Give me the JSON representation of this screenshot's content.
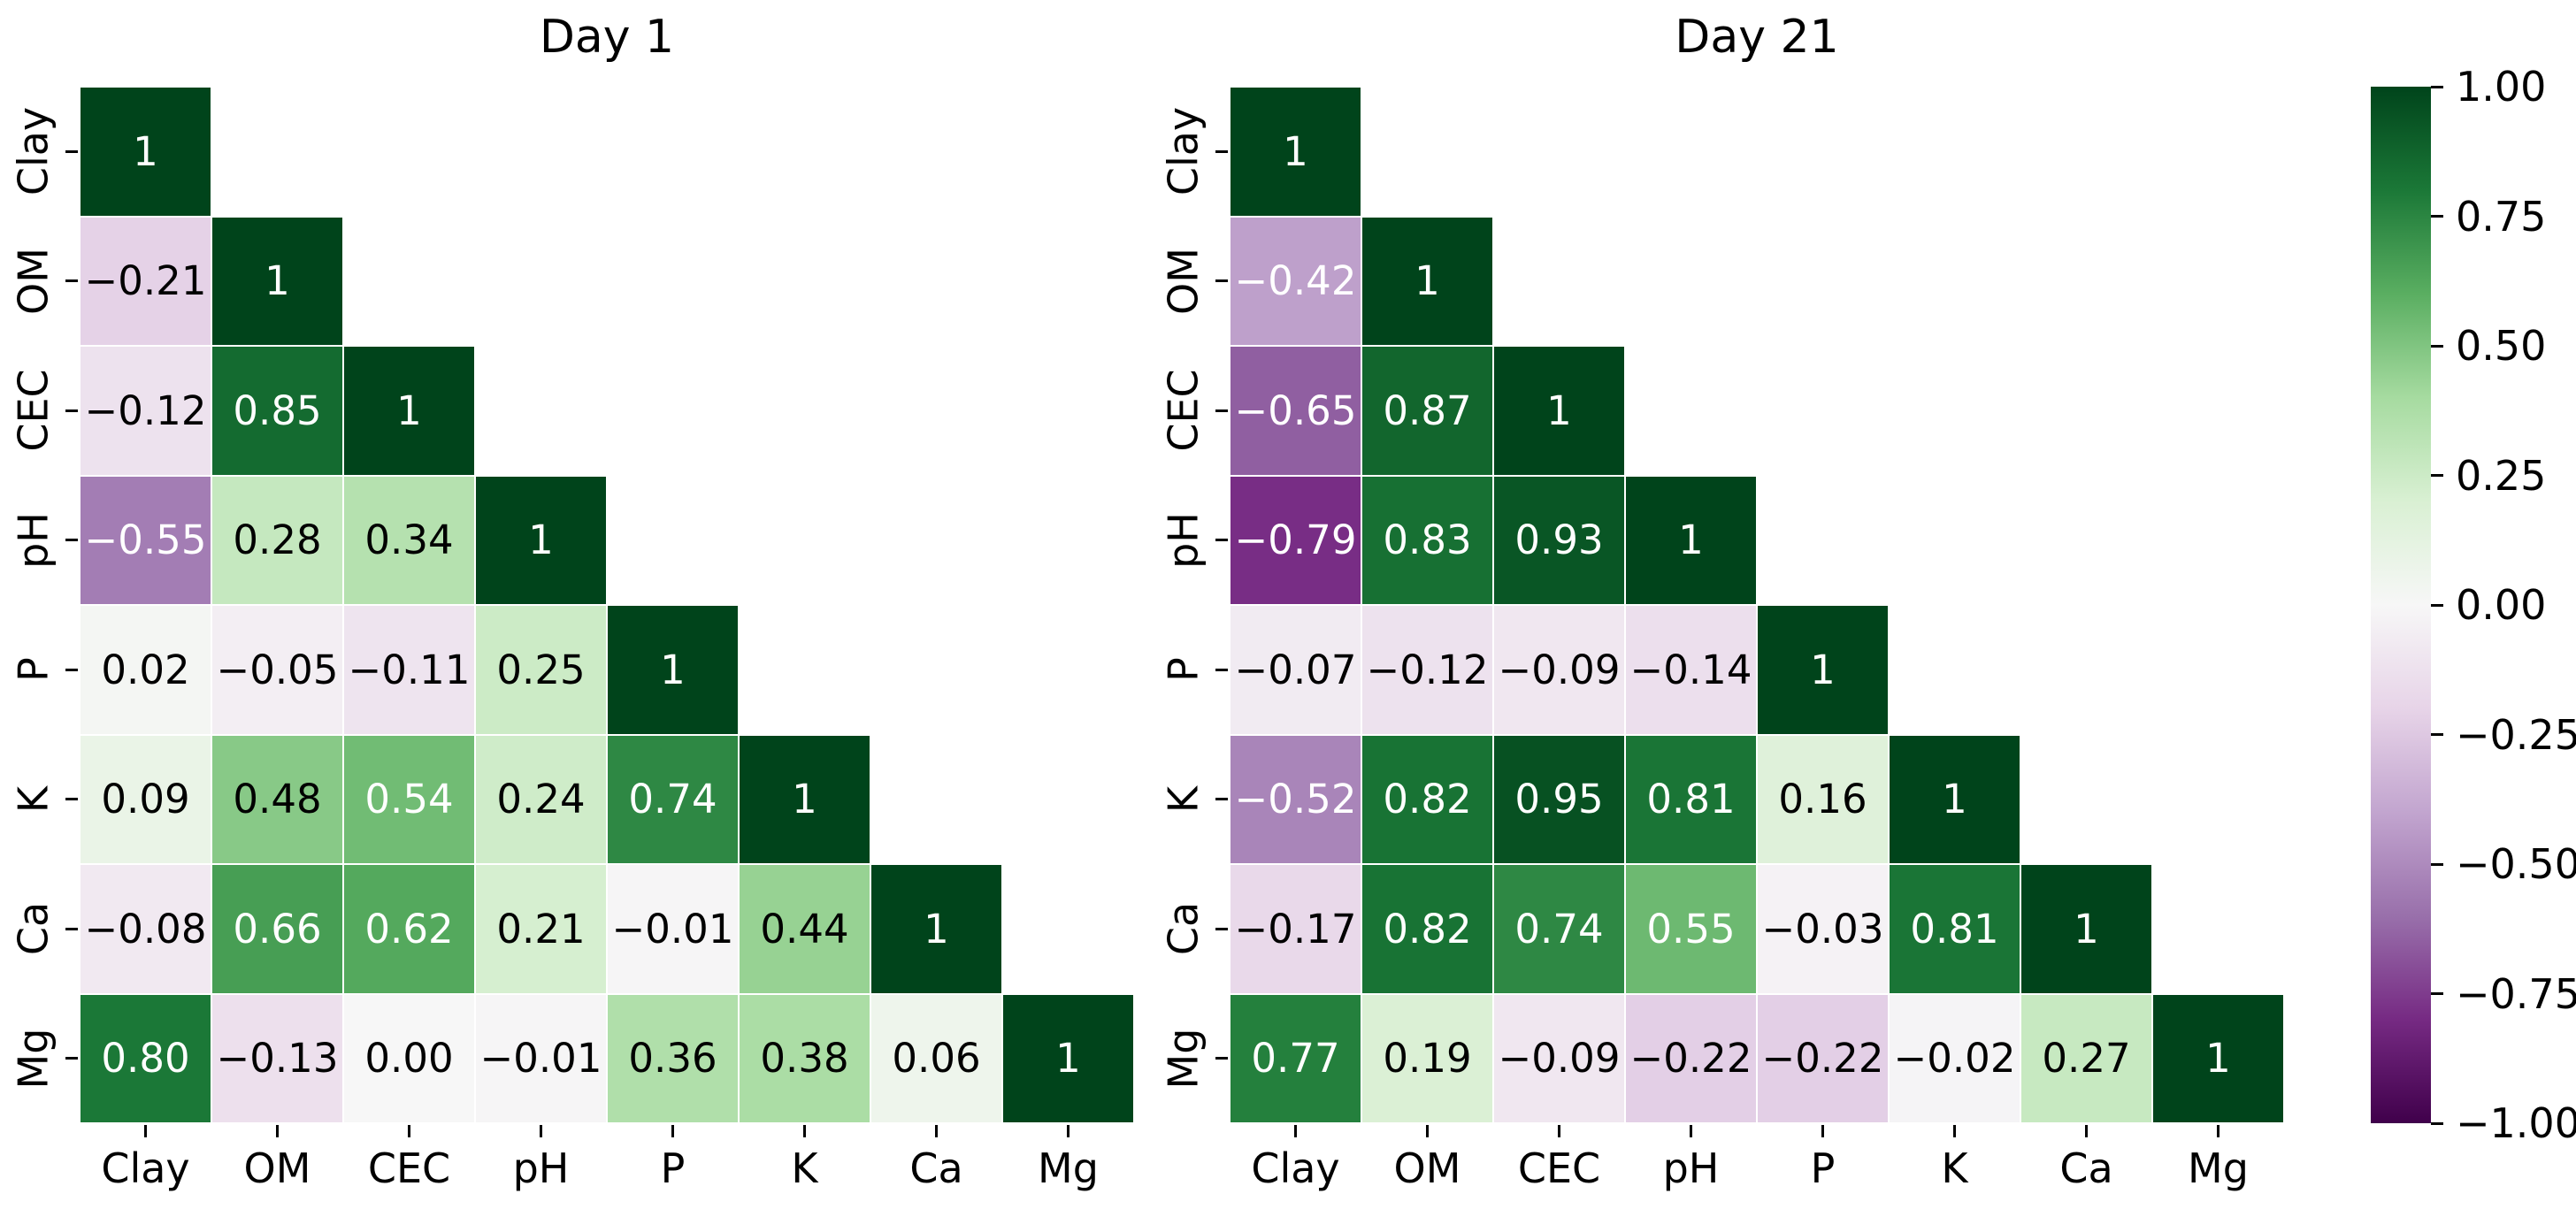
{
  "chart_data": [
    {
      "type": "heatmap",
      "title": "Day 1",
      "shape": "lower-triangle",
      "x_categories": [
        "Clay",
        "OM",
        "CEC",
        "pH",
        "P",
        "K",
        "Ca",
        "Mg"
      ],
      "y_categories": [
        "Clay",
        "OM",
        "CEC",
        "pH",
        "P",
        "K",
        "Ca",
        "Mg"
      ],
      "matrix_lower_triangle": [
        [
          1
        ],
        [
          -0.21,
          1
        ],
        [
          -0.12,
          0.85,
          1
        ],
        [
          -0.55,
          0.28,
          0.34,
          1
        ],
        [
          0.02,
          -0.05,
          -0.11,
          0.25,
          1
        ],
        [
          0.09,
          0.48,
          0.54,
          0.24,
          0.74,
          1
        ],
        [
          -0.08,
          0.66,
          0.62,
          0.21,
          -0.01,
          0.44,
          1
        ],
        [
          0.8,
          -0.13,
          0.0,
          -0.01,
          0.36,
          0.38,
          0.06,
          1
        ]
      ],
      "vmin": -1,
      "vmax": 1,
      "annotations": true,
      "grid": false,
      "legend_position": "shared-colorbar-right"
    },
    {
      "type": "heatmap",
      "title": "Day 21",
      "shape": "lower-triangle",
      "x_categories": [
        "Clay",
        "OM",
        "CEC",
        "pH",
        "P",
        "K",
        "Ca",
        "Mg"
      ],
      "y_categories": [
        "Clay",
        "OM",
        "CEC",
        "pH",
        "P",
        "K",
        "Ca",
        "Mg"
      ],
      "matrix_lower_triangle": [
        [
          1
        ],
        [
          -0.42,
          1
        ],
        [
          -0.65,
          0.87,
          1
        ],
        [
          -0.79,
          0.83,
          0.93,
          1
        ],
        [
          -0.07,
          -0.12,
          -0.09,
          -0.14,
          1
        ],
        [
          -0.52,
          0.82,
          0.95,
          0.81,
          0.16,
          1
        ],
        [
          -0.17,
          0.82,
          0.74,
          0.55,
          -0.03,
          0.81,
          1
        ],
        [
          0.77,
          0.19,
          -0.09,
          -0.22,
          -0.22,
          -0.02,
          0.27,
          1
        ]
      ],
      "vmin": -1,
      "vmax": 1,
      "annotations": true,
      "grid": false,
      "legend_position": "shared-colorbar-right"
    }
  ],
  "colorbar": {
    "tick_labels": [
      "1.00",
      "0.75",
      "0.50",
      "0.25",
      "0.00",
      "−0.25",
      "−0.50",
      "−0.75",
      "−1.00"
    ],
    "tick_values": [
      1.0,
      0.75,
      0.5,
      0.25,
      0.0,
      -0.25,
      -0.5,
      -0.75,
      -1.0
    ],
    "colormap_name": "PRGn",
    "gradient_stops_top_to_bottom": [
      "#00441b",
      "#1b7837",
      "#5aae61",
      "#a6dba0",
      "#d9f0d3",
      "#f7f7f7",
      "#e7d4e8",
      "#c2a5cf",
      "#9970ab",
      "#762a83",
      "#40004b"
    ]
  },
  "styles": {
    "background": "#ffffff",
    "text_color": "#000000",
    "annotation_text_on_dark": "#ffffff",
    "annotation_text_on_light": "#000000",
    "cell_gridline_color": "#ffffff",
    "diagonal_color": "#00441b"
  }
}
